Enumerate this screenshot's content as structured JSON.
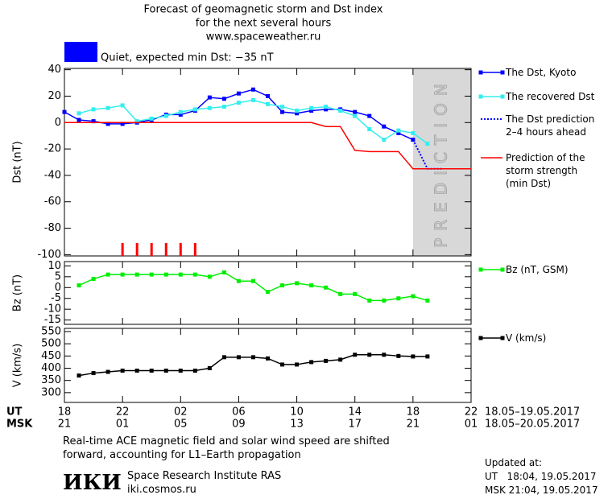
{
  "header": {
    "title": [
      "Forecast of geomagnetic storm and Dst index",
      "for the next several hours",
      "www.spaceweather.ru"
    ],
    "status": "Quiet, expected min Dst: −35 nT",
    "status_color": "#0000ff"
  },
  "x_axis": {
    "xlim": [
      0,
      28
    ],
    "xticks": [
      {
        "value": 0,
        "label": "18"
      },
      {
        "value": 4,
        "label": "22"
      },
      {
        "value": 8,
        "label": "02"
      },
      {
        "value": 12,
        "label": "06"
      },
      {
        "value": 16,
        "label": "10"
      },
      {
        "value": 20,
        "label": "14"
      },
      {
        "value": 24,
        "label": "18"
      },
      {
        "value": 28,
        "label": "22"
      }
    ],
    "ut_label": "UT",
    "msk_label": "MSK",
    "msk_ticks": [
      "21",
      "01",
      "05",
      "09",
      "13",
      "17",
      "21",
      "01"
    ],
    "ut_range": "18.05–19.05.2017",
    "msk_range": "18.05–20.05.2017"
  },
  "chart_data": [
    {
      "type": "line",
      "ylabel": "Dst (nT)",
      "ylim": [
        -101,
        41
      ],
      "yticks": [
        40,
        20,
        0,
        -20,
        -40,
        -60,
        -80,
        -100
      ],
      "prediction_band": {
        "x": [
          24,
          28
        ],
        "label": "PREDICTION",
        "color": "#d8d8d8"
      },
      "event_marks_x": [
        4,
        5,
        6,
        7,
        8,
        9
      ],
      "event_color": "#ff0000",
      "series": [
        {
          "name": "The Dst, Kyoto",
          "color": "#0000ff",
          "marker": "square",
          "x": [
            0,
            1,
            2,
            3,
            4,
            5,
            6,
            7,
            8,
            9,
            10,
            11,
            12,
            13,
            14,
            15,
            16,
            17,
            18,
            19,
            20,
            21,
            22,
            23,
            24
          ],
          "values": [
            8,
            2,
            1,
            -1,
            -1,
            0,
            2,
            6,
            6,
            9,
            19,
            18,
            22,
            25,
            20,
            8,
            7,
            9,
            10,
            10,
            8,
            5,
            -3,
            -8,
            -13
          ]
        },
        {
          "name": "The recovered Dst",
          "color": "#33eeee",
          "marker": "square",
          "x": [
            1,
            2,
            3,
            4,
            5,
            6,
            7,
            8,
            9,
            10,
            11,
            12,
            13,
            14,
            15,
            16,
            17,
            18,
            19,
            20,
            21,
            22,
            23,
            24,
            25
          ],
          "values": [
            7,
            10,
            11,
            13,
            1,
            3,
            5,
            8,
            10,
            11,
            12,
            15,
            17,
            14,
            12,
            9,
            11,
            12,
            9,
            5,
            -5,
            -13,
            -6,
            -8,
            -16
          ]
        },
        {
          "name": "The Dst prediction\n2–4 hours ahead",
          "color": "#0000ff",
          "dash": "dotted",
          "x": [
            24,
            25,
            26
          ],
          "values": [
            -13,
            -35,
            -35
          ]
        },
        {
          "name": "Prediction of the\nstorm strength\n(min Dst)",
          "color": "#ff0000",
          "x": [
            0,
            17,
            18,
            19,
            20,
            21,
            23,
            24,
            28
          ],
          "values": [
            0,
            0,
            -3,
            -3,
            -21,
            -22,
            -22,
            -35,
            -35
          ]
        }
      ]
    },
    {
      "type": "line",
      "ylabel": "Bz (nT)",
      "ylim": [
        -17,
        12
      ],
      "yticks": [
        10,
        5,
        0,
        -5,
        -10,
        -15
      ],
      "series": [
        {
          "name": "Bz (nT, GSM)",
          "color": "#00ee00",
          "marker": "square",
          "x": [
            1,
            2,
            3,
            4,
            5,
            6,
            7,
            8,
            9,
            10,
            11,
            12,
            13,
            14,
            15,
            16,
            17,
            18,
            19,
            20,
            21,
            22,
            23,
            24,
            25
          ],
          "values": [
            1,
            4,
            6,
            6,
            6,
            6,
            6,
            6,
            6,
            5,
            7,
            3,
            3,
            -2,
            1,
            2,
            1,
            0,
            -3,
            -3,
            -6,
            -6,
            -5,
            -4,
            -6
          ]
        }
      ]
    },
    {
      "type": "line",
      "ylabel": "V (km/s)",
      "ylim": [
        260,
        563
      ],
      "yticks": [
        550,
        500,
        450,
        400,
        350,
        300
      ],
      "series": [
        {
          "name": "V (km/s)",
          "color": "#000000",
          "marker": "square",
          "x": [
            1,
            2,
            3,
            4,
            5,
            6,
            7,
            8,
            9,
            10,
            11,
            12,
            13,
            14,
            15,
            16,
            17,
            18,
            19,
            20,
            21,
            22,
            23,
            24,
            25
          ],
          "values": [
            370,
            380,
            385,
            390,
            390,
            390,
            390,
            390,
            390,
            400,
            445,
            445,
            445,
            440,
            415,
            415,
            425,
            430,
            435,
            455,
            455,
            455,
            450,
            448,
            448
          ]
        }
      ]
    }
  ],
  "footer": {
    "note": [
      "Real-time ACE magnetic field and solar wind speed are shifted",
      "forward, accounting for L1–Earth propagation"
    ],
    "logo": "ИКИ",
    "institute": "Space Research Institute RAS",
    "site": "iki.cosmos.ru",
    "updated": [
      "Updated at:",
      "UT   18:04, 19.05.2017",
      "MSK 21:04, 19.05.2017"
    ]
  }
}
